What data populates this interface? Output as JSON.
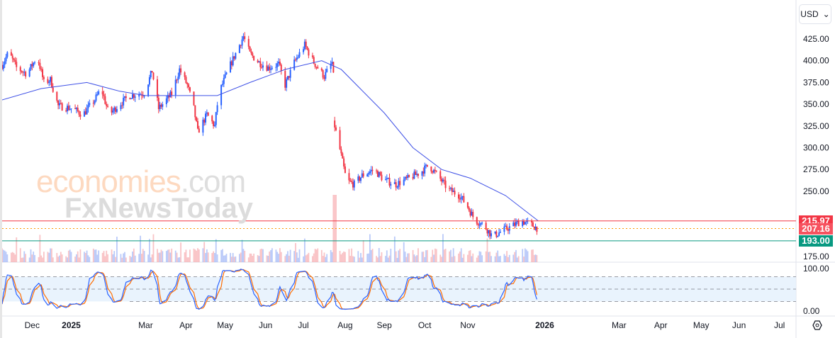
{
  "header": {
    "currency": "USD"
  },
  "watermark": {
    "line1a": "economies",
    "line1b": ".com",
    "line2": "FxNewsToday"
  },
  "chart_data": {
    "type": "candlestick",
    "price_axis": {
      "ticks": [
        "425.00",
        "400.00",
        "375.00",
        "350.00",
        "325.00",
        "300.00",
        "275.00",
        "250.00",
        "175.00"
      ],
      "tick_values": [
        425,
        400,
        375,
        350,
        325,
        300,
        275,
        250,
        175
      ],
      "range": [
        165,
        430
      ]
    },
    "time_axis": {
      "labels": [
        {
          "t": 23,
          "label": "Dec"
        },
        {
          "t": 53,
          "label": "2025"
        },
        {
          "t": 110,
          "label": "Mar"
        },
        {
          "t": 141,
          "label": "Apr"
        },
        {
          "t": 171,
          "label": "May"
        },
        {
          "t": 202,
          "label": "Jun"
        },
        {
          "t": 231,
          "label": "Jul"
        },
        {
          "t": 263,
          "label": "Aug"
        },
        {
          "t": 293,
          "label": "Sep"
        },
        {
          "t": 324,
          "label": "Oct"
        },
        {
          "t": 357,
          "label": "Nov"
        },
        {
          "t": 416,
          "label": "2026"
        },
        {
          "t": 473,
          "label": "Mar"
        },
        {
          "t": 505,
          "label": "Apr"
        },
        {
          "t": 536,
          "label": "May"
        },
        {
          "t": 565,
          "label": "Jun"
        },
        {
          "t": 596,
          "label": "Jul"
        }
      ]
    },
    "close_path": [
      [
        0,
        395
      ],
      [
        5,
        410
      ],
      [
        11,
        392
      ],
      [
        19,
        385
      ],
      [
        27,
        405
      ],
      [
        32,
        375
      ],
      [
        37,
        378
      ],
      [
        43,
        348
      ],
      [
        54,
        345
      ],
      [
        62,
        338
      ],
      [
        71,
        355
      ],
      [
        76,
        368
      ],
      [
        82,
        338
      ],
      [
        90,
        350
      ],
      [
        98,
        360
      ],
      [
        109,
        363
      ],
      [
        115,
        388
      ],
      [
        120,
        345
      ],
      [
        130,
        362
      ],
      [
        136,
        390
      ],
      [
        142,
        372
      ],
      [
        147,
        345
      ],
      [
        150,
        318
      ],
      [
        157,
        338
      ],
      [
        163,
        325
      ],
      [
        166,
        362
      ],
      [
        174,
        392
      ],
      [
        185,
        428
      ],
      [
        190,
        408
      ],
      [
        197,
        398
      ],
      [
        204,
        392
      ],
      [
        212,
        396
      ],
      [
        217,
        372
      ],
      [
        224,
        398
      ],
      [
        232,
        418
      ],
      [
        239,
        398
      ],
      [
        247,
        382
      ],
      [
        253,
        398
      ],
      [
        254,
        382
      ],
      [
        255,
        325
      ],
      [
        259,
        298
      ],
      [
        264,
        262
      ],
      [
        270,
        258
      ],
      [
        276,
        268
      ],
      [
        285,
        275
      ],
      [
        293,
        263
      ],
      [
        302,
        258
      ],
      [
        312,
        265
      ],
      [
        321,
        272
      ],
      [
        327,
        280
      ],
      [
        334,
        268
      ],
      [
        342,
        252
      ],
      [
        351,
        245
      ],
      [
        357,
        232
      ],
      [
        362,
        218
      ],
      [
        370,
        210
      ],
      [
        376,
        198
      ],
      [
        384,
        205
      ],
      [
        391,
        210
      ],
      [
        398,
        216
      ],
      [
        405,
        212
      ],
      [
        411,
        207
      ]
    ],
    "moving_average": [
      [
        0,
        355
      ],
      [
        30,
        368
      ],
      [
        65,
        375
      ],
      [
        90,
        365
      ],
      [
        110,
        360
      ],
      [
        140,
        360
      ],
      [
        165,
        360
      ],
      [
        190,
        375
      ],
      [
        217,
        390
      ],
      [
        245,
        400
      ],
      [
        260,
        390
      ],
      [
        293,
        340
      ],
      [
        315,
        300
      ],
      [
        337,
        275
      ],
      [
        359,
        265
      ],
      [
        386,
        245
      ],
      [
        411,
        216
      ]
    ],
    "levels": [
      {
        "value": 215.97,
        "label": "215.97",
        "color": "#f23645",
        "style": "solid"
      },
      {
        "value": 207.16,
        "label": "207.16",
        "color": "#f7525f",
        "style": "dotted"
      },
      {
        "value": 193.0,
        "label": "193.00",
        "color": "#089981",
        "style": "solid"
      }
    ],
    "oscillator": {
      "type": "stochastic",
      "ticks": [
        "100.00",
        "0.00"
      ],
      "bands": [
        80,
        50,
        20
      ],
      "k_color": "#2962ff",
      "d_color": "#ff6d00"
    },
    "colors": {
      "up": "#2962ff",
      "down": "#f23645",
      "ma": "#3f51e6"
    }
  }
}
